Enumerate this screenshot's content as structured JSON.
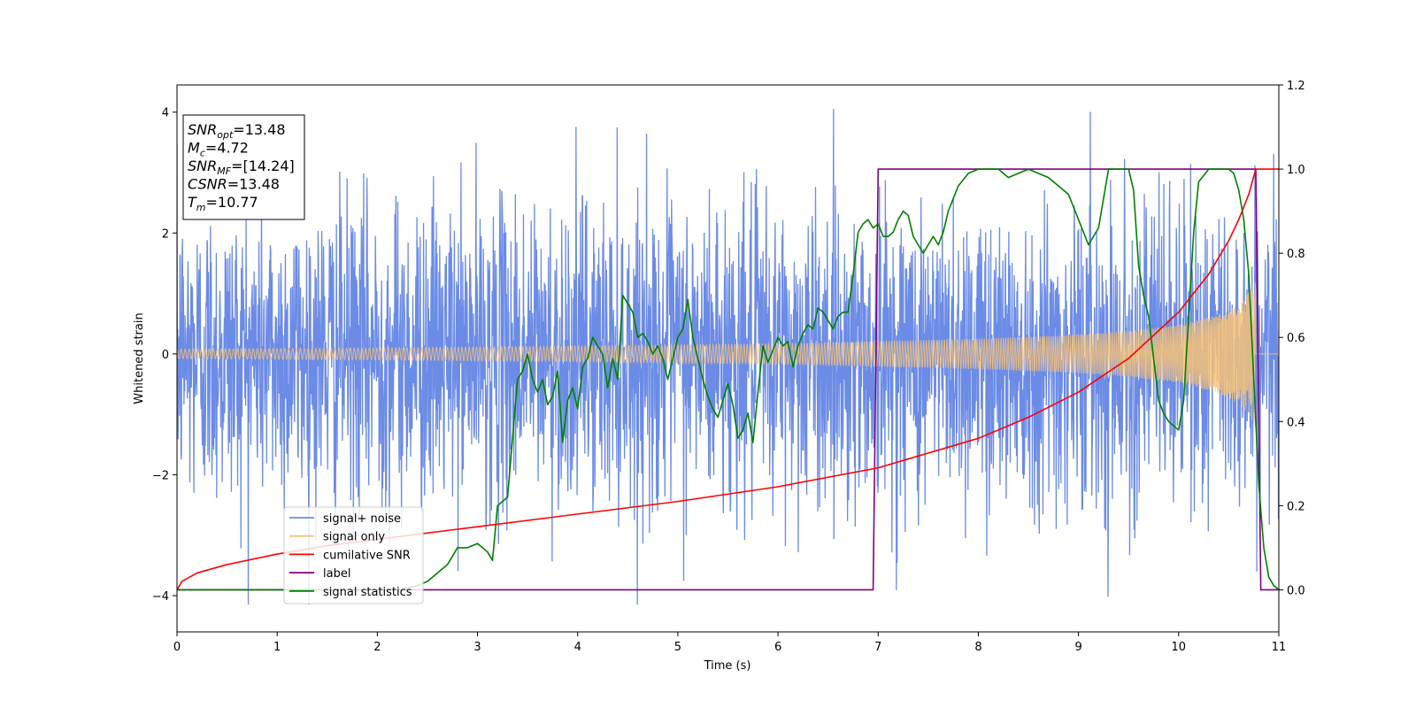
{
  "chart_data": {
    "type": "line",
    "xlabel": "Time (s)",
    "ylabel": "Whitened strain",
    "xlim": [
      0,
      11
    ],
    "ylim_left": [
      -4.6,
      4.45
    ],
    "ylim_right": [
      -0.1,
      1.2
    ],
    "x_ticks": [
      "0",
      "1",
      "2",
      "3",
      "4",
      "5",
      "6",
      "7",
      "8",
      "9",
      "10",
      "11"
    ],
    "y_left_ticks": [
      "−4",
      "−2",
      "0",
      "2",
      "4"
    ],
    "y_right_ticks": [
      "0.0",
      "0.2",
      "0.4",
      "0.6",
      "0.8",
      "1.0",
      "1.2"
    ],
    "colors": {
      "signal_noise": "#6b8be6",
      "signal_only": "#f5c178",
      "cumulative_snr": "#ff0000",
      "label": "#800080",
      "signal_statistics": "#008000"
    },
    "legend": {
      "position": "lower-left",
      "entries": [
        {
          "name": "signal+ noise",
          "color": "#6b8be6"
        },
        {
          "name": "signal only",
          "color": "#f5c178"
        },
        {
          "name": "cumilative SNR",
          "color": "#ff0000"
        },
        {
          "name": "label",
          "color": "#800080"
        },
        {
          "name": "signal statistics",
          "color": "#008000"
        }
      ]
    },
    "annotation": {
      "lines": [
        {
          "base": "SNR",
          "sub": "opt",
          "value": "=13.48"
        },
        {
          "base": "M",
          "sub": "c",
          "value": "=4.72"
        },
        {
          "base": "SNR",
          "sub": "MF",
          "value": "=[14.24]"
        },
        {
          "base": "CSNR",
          "sub": "",
          "value": "=13.48"
        },
        {
          "base": "T",
          "sub": "m",
          "value": "=10.77"
        }
      ]
    },
    "signal_noise": {
      "axis": "left",
      "x_range": [
        0,
        11
      ],
      "std": 1.25,
      "min": -4.15,
      "max": 4.05
    },
    "signal_only": {
      "axis": "left",
      "x_range": [
        0,
        10.77
      ],
      "envelope": [
        [
          0,
          0.08
        ],
        [
          2,
          0.1
        ],
        [
          4,
          0.13
        ],
        [
          6,
          0.17
        ],
        [
          8,
          0.25
        ],
        [
          9,
          0.32
        ],
        [
          9.5,
          0.38
        ],
        [
          10,
          0.48
        ],
        [
          10.3,
          0.6
        ],
        [
          10.5,
          0.72
        ],
        [
          10.65,
          0.9
        ],
        [
          10.77,
          1.2
        ]
      ]
    },
    "cumulative_snr": {
      "axis": "right",
      "x": [
        0,
        0.05,
        0.2,
        0.5,
        1,
        1.5,
        2,
        3,
        4,
        5,
        6,
        7,
        8,
        8.5,
        9,
        9.5,
        10,
        10.3,
        10.5,
        10.6,
        10.7,
        10.77,
        11
      ],
      "y": [
        0.0,
        0.02,
        0.04,
        0.06,
        0.085,
        0.105,
        0.12,
        0.15,
        0.18,
        0.21,
        0.245,
        0.29,
        0.36,
        0.41,
        0.47,
        0.55,
        0.66,
        0.75,
        0.83,
        0.88,
        0.94,
        1.0,
        1.0
      ]
    },
    "label": {
      "axis": "right",
      "x": [
        0,
        6.95,
        7.0,
        10.77,
        10.82,
        11
      ],
      "y": [
        0,
        0,
        1,
        1,
        0,
        0
      ]
    },
    "signal_statistics": {
      "axis": "right",
      "x": [
        0,
        0.5,
        1,
        1.5,
        2,
        2.2,
        2.4,
        2.5,
        2.6,
        2.7,
        2.8,
        2.9,
        3.0,
        3.1,
        3.15,
        3.2,
        3.3,
        3.4,
        3.45,
        3.5,
        3.55,
        3.6,
        3.65,
        3.7,
        3.75,
        3.8,
        3.85,
        3.9,
        3.95,
        4.0,
        4.05,
        4.1,
        4.15,
        4.2,
        4.25,
        4.3,
        4.35,
        4.4,
        4.45,
        4.5,
        4.55,
        4.6,
        4.65,
        4.7,
        4.75,
        4.8,
        4.85,
        4.9,
        4.95,
        5.0,
        5.05,
        5.1,
        5.15,
        5.2,
        5.25,
        5.3,
        5.35,
        5.4,
        5.45,
        5.5,
        5.55,
        5.6,
        5.65,
        5.7,
        5.75,
        5.8,
        5.85,
        5.9,
        5.95,
        6.0,
        6.05,
        6.1,
        6.15,
        6.2,
        6.25,
        6.3,
        6.35,
        6.4,
        6.45,
        6.5,
        6.55,
        6.6,
        6.65,
        6.7,
        6.75,
        6.8,
        6.85,
        6.9,
        6.95,
        7.0,
        7.05,
        7.1,
        7.15,
        7.2,
        7.25,
        7.3,
        7.35,
        7.4,
        7.45,
        7.5,
        7.55,
        7.6,
        7.65,
        7.7,
        7.75,
        7.8,
        7.9,
        8.0,
        8.1,
        8.2,
        8.3,
        8.4,
        8.5,
        8.6,
        8.7,
        8.8,
        8.9,
        9.0,
        9.1,
        9.2,
        9.3,
        9.4,
        9.5,
        9.55,
        9.6,
        9.65,
        9.7,
        9.75,
        9.8,
        9.85,
        9.9,
        9.95,
        10.0,
        10.05,
        10.1,
        10.15,
        10.2,
        10.3,
        10.4,
        10.5,
        10.55,
        10.6,
        10.65,
        10.7,
        10.75,
        10.8,
        10.85,
        10.9,
        10.95,
        11.0
      ],
      "y": [
        0.0,
        0.0,
        0.0,
        0.0,
        0.0,
        0.0,
        0.01,
        0.02,
        0.04,
        0.06,
        0.1,
        0.1,
        0.11,
        0.09,
        0.07,
        0.2,
        0.22,
        0.5,
        0.52,
        0.56,
        0.5,
        0.47,
        0.5,
        0.44,
        0.46,
        0.52,
        0.35,
        0.45,
        0.48,
        0.43,
        0.53,
        0.55,
        0.6,
        0.58,
        0.56,
        0.48,
        0.55,
        0.5,
        0.7,
        0.68,
        0.66,
        0.6,
        0.61,
        0.59,
        0.56,
        0.58,
        0.55,
        0.5,
        0.55,
        0.6,
        0.62,
        0.69,
        0.6,
        0.55,
        0.5,
        0.46,
        0.43,
        0.41,
        0.45,
        0.49,
        0.44,
        0.36,
        0.38,
        0.42,
        0.35,
        0.47,
        0.58,
        0.54,
        0.57,
        0.6,
        0.58,
        0.59,
        0.53,
        0.58,
        0.61,
        0.63,
        0.62,
        0.67,
        0.66,
        0.64,
        0.62,
        0.65,
        0.66,
        0.66,
        0.75,
        0.85,
        0.87,
        0.88,
        0.86,
        0.87,
        0.84,
        0.84,
        0.85,
        0.88,
        0.9,
        0.89,
        0.84,
        0.82,
        0.8,
        0.82,
        0.84,
        0.82,
        0.85,
        0.9,
        0.93,
        0.96,
        0.99,
        1.0,
        1.0,
        1.0,
        0.98,
        0.99,
        1.0,
        0.99,
        0.98,
        0.96,
        0.94,
        0.88,
        0.82,
        0.86,
        1.0,
        1.0,
        1.0,
        0.95,
        0.77,
        0.7,
        0.65,
        0.55,
        0.45,
        0.42,
        0.4,
        0.39,
        0.38,
        0.45,
        0.65,
        0.85,
        0.97,
        1.0,
        1.0,
        1.0,
        0.99,
        0.95,
        0.88,
        0.75,
        0.5,
        0.25,
        0.1,
        0.03,
        0.01,
        0.0
      ]
    }
  }
}
